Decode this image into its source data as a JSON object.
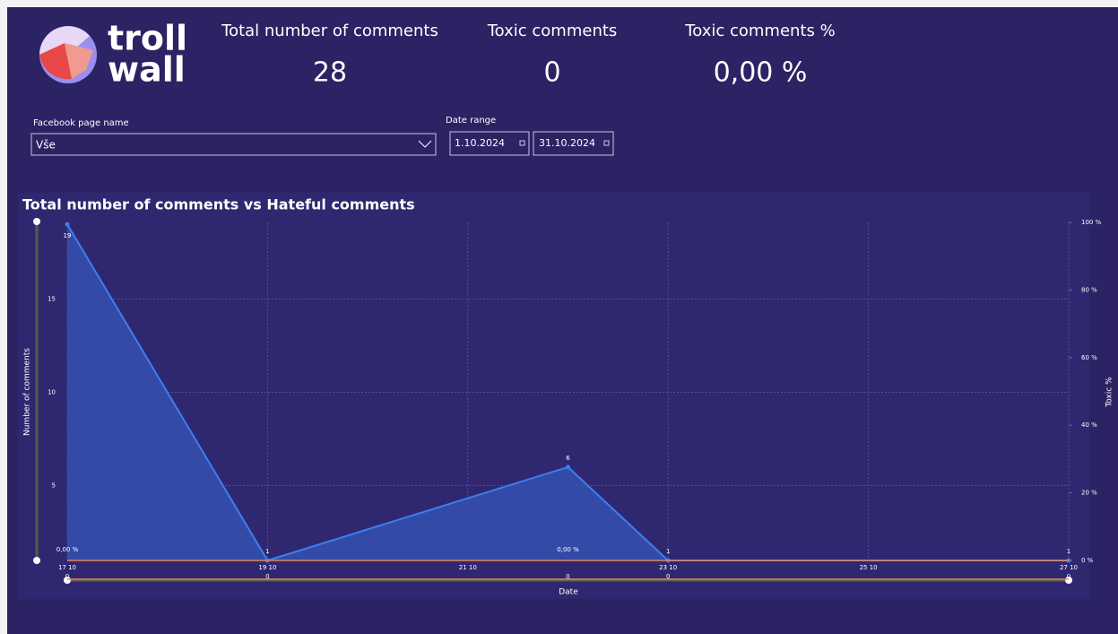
{
  "logo": [
    "troll",
    "wall"
  ],
  "kpis": [
    {
      "label": "Total number of comments",
      "value": 28
    },
    {
      "label": "Toxic comments",
      "value": 0
    },
    {
      "label": "Toxic comments %",
      "value": "0,00 %"
    }
  ],
  "filters": {
    "page_label": "Facebook page name",
    "page_value": "Vše",
    "date_label": "Date range",
    "date_from": "1.10.2024",
    "date_to": "31.10.2024"
  },
  "chart_data": {
    "type": "area",
    "title": "Total number of comments vs Hateful comments",
    "xlabel": "Date",
    "ylabel": "Number of comments",
    "y2label": "Toxic %",
    "x": [
      17,
      19,
      22,
      23,
      27
    ],
    "xlim": [
      17,
      27
    ],
    "xticks": [
      {
        "value": 17,
        "label": "17 10"
      },
      {
        "value": 19,
        "label": "19 10"
      },
      {
        "value": 21,
        "label": "21 10"
      },
      {
        "value": 23,
        "label": "23 10"
      },
      {
        "value": 25,
        "label": "25 10"
      },
      {
        "value": 27,
        "label": "27 10"
      }
    ],
    "ylim": [
      1,
      19.1
    ],
    "yticks": [
      5,
      10,
      15
    ],
    "y2lim": [
      0,
      100
    ],
    "y2ticks": [
      {
        "value": 0,
        "label": "0 %"
      },
      {
        "value": 20,
        "label": "20 %"
      },
      {
        "value": 40,
        "label": "40 %"
      },
      {
        "value": 60,
        "label": "60 %"
      },
      {
        "value": 80,
        "label": "80 %"
      },
      {
        "value": 100,
        "label": "100 %"
      }
    ],
    "grid": true,
    "series": [
      {
        "color": "#3d7ef0",
        "values": [
          19,
          1,
          6,
          1,
          1
        ]
      },
      {
        "color": "#e8835a",
        "values": [
          0,
          0,
          0,
          0,
          0
        ]
      },
      {
        "color": "#e8835a",
        "axis": "y2",
        "values": [
          0,
          0,
          0,
          0,
          0
        ],
        "value_labels": [
          "0,00 %",
          null,
          "0,00 %",
          null,
          null
        ]
      }
    ]
  }
}
